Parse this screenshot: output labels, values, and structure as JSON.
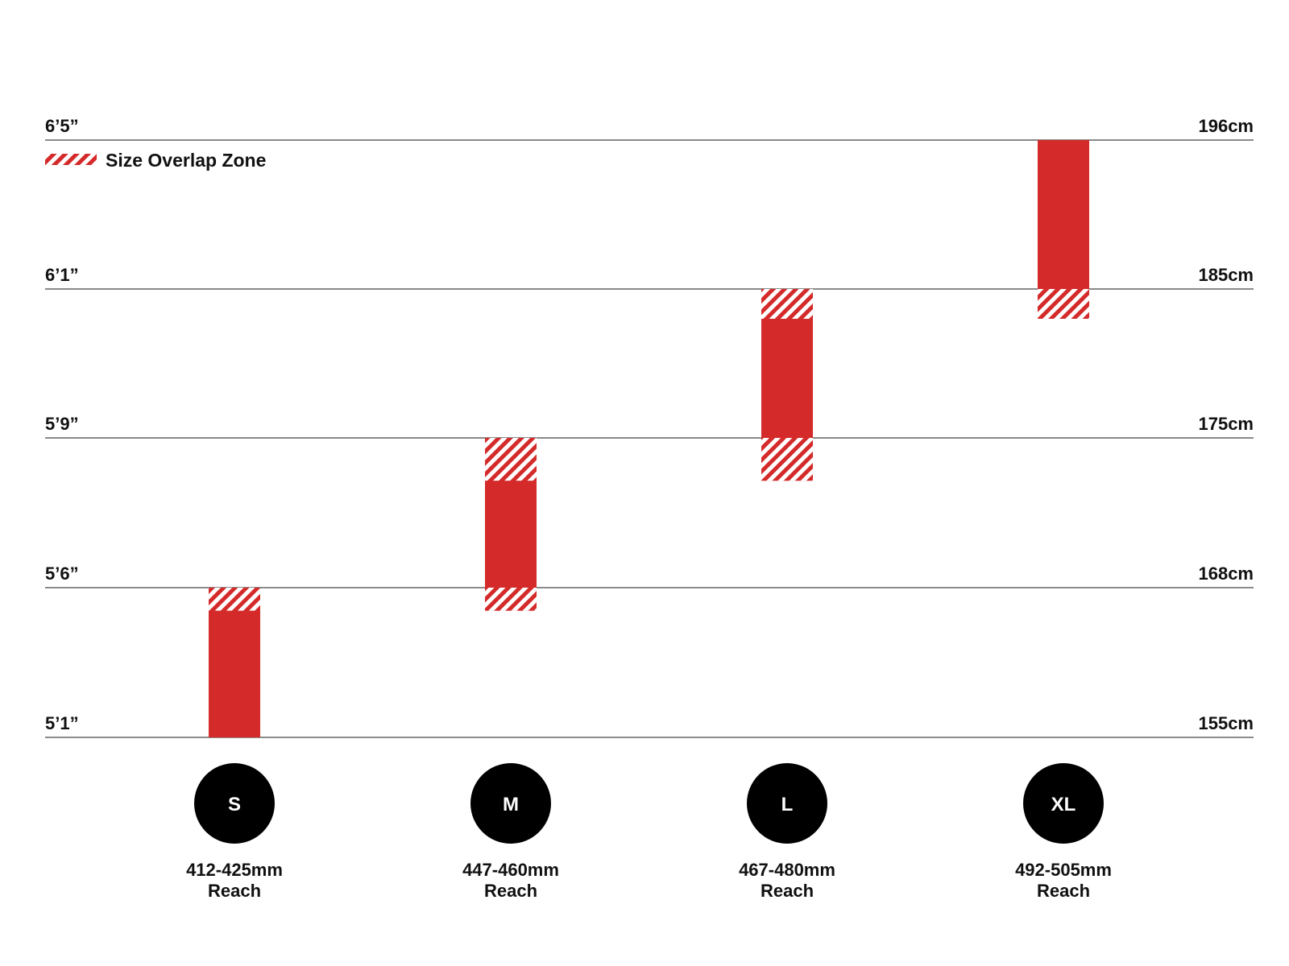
{
  "chart_data": {
    "type": "bar",
    "title": "",
    "xlabel": "",
    "ylabel": "",
    "y_unit": "cm",
    "ylim": [
      155,
      196
    ],
    "grid": true,
    "legend_position": "top-left",
    "legend": {
      "label": "Size Overlap Zone",
      "pattern": "hatched"
    },
    "y_ticks": [
      {
        "value": 155,
        "left_label": "5’1”",
        "right_label": "155cm"
      },
      {
        "value": 168,
        "left_label": "5’6”",
        "right_label": "168cm"
      },
      {
        "value": 175,
        "left_label": "5’9”",
        "right_label": "175cm"
      },
      {
        "value": 185,
        "left_label": "6’1”",
        "right_label": "185cm"
      },
      {
        "value": 196,
        "left_label": "6’5”",
        "right_label": "196cm"
      }
    ],
    "categories": [
      "S",
      "M",
      "L",
      "XL"
    ],
    "sizes": [
      {
        "size": "S",
        "reach": "412-425mm",
        "reach_label": "Reach",
        "range": [
          155,
          168
        ],
        "overlap_zones": [
          [
            166,
            168
          ]
        ]
      },
      {
        "size": "M",
        "reach": "447-460mm",
        "reach_label": "Reach",
        "range": [
          166,
          175
        ],
        "overlap_zones": [
          [
            166,
            168
          ],
          [
            173,
            175
          ]
        ]
      },
      {
        "size": "L",
        "reach": "467-480mm",
        "reach_label": "Reach",
        "range": [
          173,
          185
        ],
        "overlap_zones": [
          [
            173,
            175
          ],
          [
            183,
            185
          ]
        ]
      },
      {
        "size": "XL",
        "reach": "492-505mm",
        "reach_label": "Reach",
        "range": [
          183,
          196
        ],
        "overlap_zones": [
          [
            183,
            185
          ]
        ]
      }
    ]
  },
  "colors": {
    "bar": "#d42a2a",
    "hatch_light": "#ffffff",
    "grid": "#8a8a8a",
    "badge": "#000000",
    "badge_text": "#ffffff",
    "text": "#111111"
  }
}
